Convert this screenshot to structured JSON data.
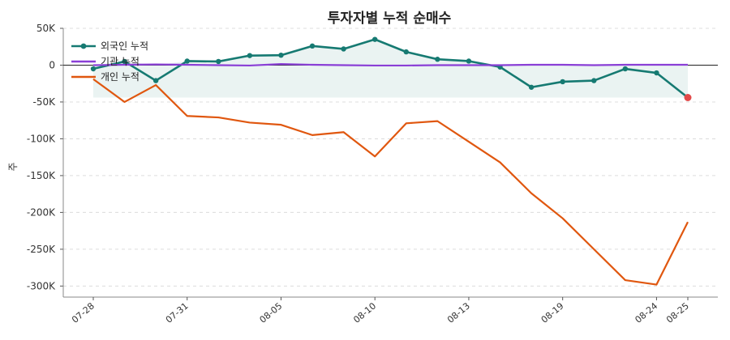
{
  "chart_data": {
    "type": "line",
    "title": "투자자별 누적 순매수",
    "ylabel": "주",
    "xlabel": "",
    "ylim": [
      -315000,
      50000
    ],
    "y_ticks": [
      50000,
      0,
      -50000,
      -100000,
      -150000,
      -200000,
      -250000,
      -300000
    ],
    "y_tick_labels": [
      "50K",
      "0",
      "-50K",
      "-100K",
      "-150K",
      "-200K",
      "-250K",
      "-300K"
    ],
    "x_tick_labels": [
      {
        "index": 0,
        "label": "07-28"
      },
      {
        "index": 3,
        "label": "07-31"
      },
      {
        "index": 6,
        "label": "08-05"
      },
      {
        "index": 9,
        "label": "08-10"
      },
      {
        "index": 12,
        "label": "08-13"
      },
      {
        "index": 15,
        "label": "08-19"
      },
      {
        "index": 18,
        "label": "08-24"
      },
      {
        "index": 19,
        "label": "08-25"
      }
    ],
    "grid": true,
    "legend_position": "top-left",
    "series": [
      {
        "name": "외국인 누적",
        "color": "#167a72",
        "markers": true,
        "fill_to_zero": true,
        "values": [
          -5000,
          5000,
          -21000,
          5500,
          5000,
          13000,
          13500,
          26000,
          22000,
          35000,
          18000,
          8000,
          5500,
          -2500,
          -30000,
          -22500,
          -21000,
          -5000,
          -10500,
          -44000
        ]
      },
      {
        "name": "기관 누적",
        "color": "#8a3fd6",
        "markers": false,
        "values": [
          0,
          500,
          1000,
          500,
          0,
          -500,
          1500,
          500,
          0,
          -500,
          -500,
          0,
          0,
          0,
          500,
          500,
          0,
          500,
          500,
          500
        ]
      },
      {
        "name": "개인 누적",
        "color": "#e0570f",
        "markers": false,
        "values": [
          -19000,
          -50000,
          -27000,
          -69000,
          -71000,
          -78000,
          -81000,
          -95000,
          -91000,
          -124000,
          -79000,
          -76000,
          -104000,
          -132000,
          -174000,
          -208000,
          -250000,
          -292000,
          -298000,
          -213000
        ]
      }
    ],
    "last_point_color": "#e24a4a",
    "zero_line_color": "#222222",
    "fill_color": "#167a72"
  }
}
